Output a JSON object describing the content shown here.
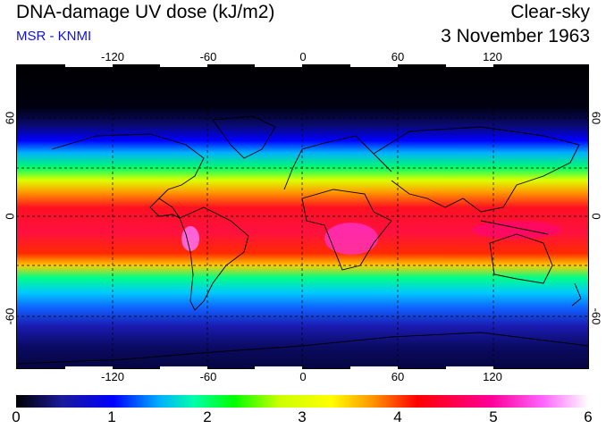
{
  "header": {
    "title": "DNA-damage UV dose (kJ/m2)",
    "subtitle": "MSR - KNMI",
    "sky": "Clear-sky",
    "date": "3 November 1963"
  },
  "map": {
    "longitude_labels": [
      "-120",
      "-60",
      "0",
      "60",
      "120"
    ],
    "latitude_labels": [
      "60",
      "0",
      "-60"
    ],
    "projection": "equirectangular",
    "gridlines": "dashed every 30 degrees",
    "coastlines": true
  },
  "colorbar": {
    "labels": [
      "0",
      "1",
      "2",
      "3",
      "4",
      "5",
      "6"
    ],
    "range": [
      0,
      6
    ],
    "colors": [
      "#000000",
      "#1a1a9a",
      "#0000ff",
      "#00b0ff",
      "#00ffaa",
      "#00ff00",
      "#ffff00",
      "#ff9900",
      "#ff0000",
      "#ff0099",
      "#ff66ff",
      "#ffffff"
    ]
  }
}
